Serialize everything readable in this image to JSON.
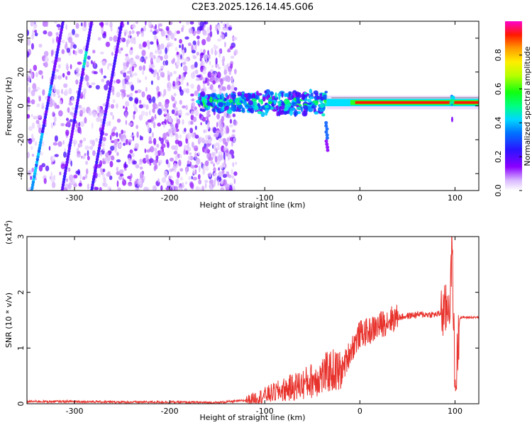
{
  "title": "C2E3.2025.126.14.45.G06",
  "chart_data": [
    {
      "type": "heatmap",
      "xlabel": "Height of straight line (km)",
      "ylabel": "Frequency (Hz)",
      "xlim": [
        -350,
        125
      ],
      "ylim": [
        -50,
        50
      ],
      "x_ticks": [
        -300,
        -200,
        -100,
        0,
        100
      ],
      "y_ticks": [
        -40,
        -20,
        0,
        20,
        40
      ],
      "colorbar": {
        "label": "Normalized spectral amplitude",
        "range": [
          0,
          1
        ],
        "ticks": [
          "0.0",
          "0.2",
          "0.4",
          "0.6",
          "0.8"
        ]
      },
      "features": {
        "diagonal_tracks_x_at_y_-50": [
          -345,
          -313,
          -282
        ],
        "diagonal_tracks_x_at_y_50": [
          -312,
          -282,
          -250
        ],
        "central_band_center_hz": 2,
        "noise_region_x": [
          -350,
          -150
        ],
        "blob_region_x": [
          -170,
          -35
        ],
        "steady_line_x": [
          -35,
          125
        ],
        "dip_x": -35,
        "spike_x": 97
      },
      "grid": false
    },
    {
      "type": "line",
      "xlabel": "Height of straight line (km)",
      "ylabel": "SNR (10 * v/v)",
      "yscale_label": "(x10^4)",
      "xlim": [
        -350,
        125
      ],
      "ylim": [
        0,
        3
      ],
      "x_ticks": [
        -300,
        -200,
        -100,
        0,
        100
      ],
      "y_ticks": [
        0,
        1,
        2,
        3
      ],
      "color": "#e8322c",
      "series": [
        {
          "name": "",
          "x": [
            -350,
            -300,
            -250,
            -200,
            -150,
            -120,
            -100,
            -80,
            -60,
            -40,
            -30,
            -20,
            -10,
            0,
            10,
            20,
            30,
            40,
            60,
            80,
            90,
            95,
            97,
            100,
            105,
            125
          ],
          "y": [
            0.04,
            0.04,
            0.03,
            0.03,
            0.02,
            0.06,
            0.15,
            0.25,
            0.35,
            0.5,
            0.6,
            0.55,
            0.95,
            1.25,
            1.3,
            1.4,
            1.5,
            1.55,
            1.6,
            1.6,
            1.65,
            1.9,
            2.9,
            0.2,
            1.55,
            1.55
          ]
        }
      ],
      "grid": false
    }
  ]
}
